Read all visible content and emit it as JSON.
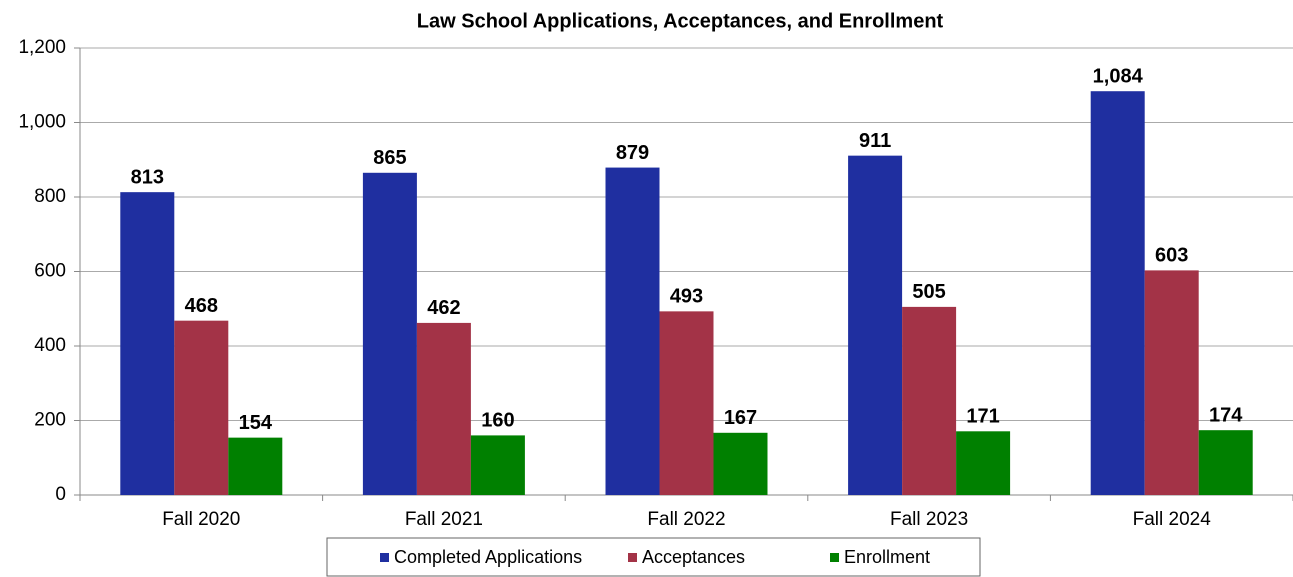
{
  "chart_data": {
    "type": "bar",
    "title": "Law School Applications, Acceptances, and Enrollment",
    "categories": [
      "Fall 2020",
      "Fall 2021",
      "Fall 2022",
      "Fall 2023",
      "Fall 2024"
    ],
    "series": [
      {
        "name": "Completed Applications",
        "color": "#1f2fa0",
        "values": [
          813,
          865,
          879,
          911,
          1084
        ],
        "value_labels": [
          "813",
          "865",
          "879",
          "911",
          "1,084"
        ]
      },
      {
        "name": "Acceptances",
        "color": "#a33347",
        "values": [
          468,
          462,
          493,
          505,
          603
        ]
      },
      {
        "name": "Enrollment",
        "color": "#008000",
        "values": [
          154,
          160,
          167,
          171,
          174
        ]
      }
    ],
    "ylim": [
      0,
      1200
    ],
    "yticks": [
      0,
      200,
      400,
      600,
      800,
      {
        "value": 1000,
        "label": "1,000"
      },
      {
        "value": 1200,
        "label": "1,200"
      }
    ],
    "grid": true,
    "legend": "bottom"
  }
}
